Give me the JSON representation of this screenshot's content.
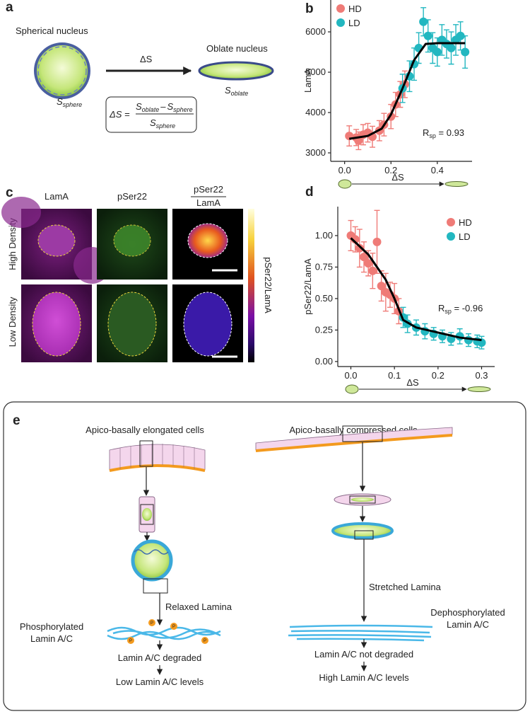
{
  "a": {
    "label": "a",
    "sphere_title": "Spherical nucleus",
    "sphere_symbol": {
      "main": "S",
      "sub": "sphere"
    },
    "arrow_label": "ΔS",
    "oblate_title": "Oblate nucleus",
    "oblate_symbol": {
      "main": "S",
      "sub": "oblate"
    },
    "formula": {
      "lhs": "ΔS =",
      "num_1": {
        "main": "S",
        "sub": "oblate"
      },
      "minus": "–",
      "num_2": {
        "main": "S",
        "sub": "sphere"
      },
      "den": {
        "main": "S",
        "sub": "sphere"
      }
    }
  },
  "c": {
    "label": "c",
    "columns": [
      "LamA",
      "pSer22"
    ],
    "ratio": {
      "top": "pSer22",
      "bottom": "LamA"
    },
    "rows": [
      "High Density",
      "Low Density"
    ],
    "colorbar_label": "pSer22/LamA"
  },
  "e": {
    "label": "e",
    "left": {
      "title": "Apico-basally elongated cells",
      "lamina": "Relaxed Lamina",
      "state": [
        "Phosphorylated",
        "Lamin A/C"
      ],
      "marker": "P",
      "outcome": "Lamin A/C degraded",
      "level": "Low Lamin A/C levels"
    },
    "right": {
      "title": "Apico-basally compressed cells",
      "lamina": "Stretched Lamina",
      "state": [
        "Dephosphorylated",
        "Lamin A/C"
      ],
      "outcome": "Lamin A/C not degraded",
      "level": "High Lamin A/C levels"
    }
  },
  "chart_data": [
    {
      "type": "scatter",
      "panel": "b",
      "ylabel": "LamA",
      "xlabel": "ΔS",
      "xlim": [
        -0.06,
        0.55
      ],
      "ylim": [
        2790,
        6790
      ],
      "xticks": [
        {
          "value": 0,
          "label": "0.0"
        },
        0.2,
        0.4
      ],
      "yticks": [
        3000,
        4000,
        5000,
        6000
      ],
      "legend": "upper left",
      "annotation": {
        "main": "R",
        "sub": "sp",
        "rest": " = 0.93"
      },
      "series": [
        {
          "name": "HD",
          "color": "#ef7b77",
          "x": [
            0.02,
            0.05,
            0.06,
            0.08,
            0.1,
            0.12,
            0.15,
            0.17,
            0.2,
            0.22,
            0.24,
            0.26
          ],
          "values": [
            3420,
            3380,
            3300,
            3450,
            3500,
            3400,
            3550,
            3700,
            3900,
            4200,
            4450,
            4700
          ],
          "errors": [
            250,
            200,
            220,
            250,
            230,
            260,
            250,
            280,
            300,
            300,
            320,
            330
          ]
        },
        {
          "name": "LD",
          "color": "#22b7c0",
          "x": [
            0.25,
            0.28,
            0.3,
            0.32,
            0.34,
            0.36,
            0.38,
            0.4,
            0.42,
            0.44,
            0.46,
            0.48,
            0.5,
            0.52
          ],
          "values": [
            4600,
            4900,
            5200,
            5600,
            6250,
            5900,
            5600,
            5500,
            5800,
            5700,
            5600,
            5800,
            5900,
            5500
          ],
          "errors": [
            350,
            380,
            400,
            380,
            350,
            400,
            380,
            350,
            380,
            350,
            400,
            380,
            350,
            400
          ]
        }
      ],
      "trend": {
        "color": "#000000",
        "x": [
          0.02,
          0.1,
          0.16,
          0.2,
          0.25,
          0.3,
          0.35,
          0.4,
          0.52
        ],
        "values": [
          3350,
          3420,
          3600,
          3950,
          4600,
          5300,
          5700,
          5720,
          5720
        ]
      }
    },
    {
      "type": "scatter",
      "panel": "d",
      "ylabel": "pSer22/LamA",
      "xlabel": "ΔS",
      "xlim": [
        -0.03,
        0.33
      ],
      "ylim": [
        -0.04,
        1.23
      ],
      "xticks": [
        {
          "value": 0,
          "label": "0.0"
        },
        0.1,
        0.2,
        0.3
      ],
      "yticks": [
        {
          "value": 0,
          "label": "0.00"
        },
        {
          "value": 0.25,
          "label": "0.25"
        },
        {
          "value": 0.5,
          "label": "0.50"
        },
        {
          "value": 0.75,
          "label": "0.75"
        },
        {
          "value": 1,
          "label": "1.00"
        }
      ],
      "legend": "upper right",
      "annotation": {
        "main": "R",
        "sub": "sp",
        "rest": " = -0.96"
      },
      "series": [
        {
          "name": "HD",
          "color": "#ef7b77",
          "x": [
            0,
            0.01,
            0.02,
            0.03,
            0.04,
            0.05,
            0.06,
            0.07,
            0.08,
            0.09,
            0.1,
            0.11
          ],
          "values": [
            1.0,
            0.97,
            0.9,
            0.83,
            0.78,
            0.72,
            0.95,
            0.6,
            0.55,
            0.53,
            0.5,
            0.4
          ],
          "errors": [
            0.12,
            0.1,
            0.15,
            0.12,
            0.1,
            0.14,
            0.25,
            0.12,
            0.15,
            0.1,
            0.12,
            0.1
          ]
        },
        {
          "name": "LD",
          "color": "#22b7c0",
          "x": [
            0.12,
            0.13,
            0.15,
            0.17,
            0.19,
            0.21,
            0.23,
            0.25,
            0.27,
            0.29,
            0.3
          ],
          "values": [
            0.35,
            0.3,
            0.27,
            0.24,
            0.22,
            0.2,
            0.18,
            0.2,
            0.17,
            0.16,
            0.15
          ],
          "errors": [
            0.08,
            0.07,
            0.06,
            0.06,
            0.05,
            0.05,
            0.05,
            0.06,
            0.05,
            0.05,
            0.05
          ]
        }
      ],
      "trend": {
        "color": "#000000",
        "x": [
          0,
          0.04,
          0.08,
          0.1,
          0.12,
          0.15,
          0.2,
          0.25,
          0.3
        ],
        "values": [
          0.98,
          0.85,
          0.65,
          0.5,
          0.33,
          0.27,
          0.23,
          0.19,
          0.17
        ]
      }
    }
  ]
}
